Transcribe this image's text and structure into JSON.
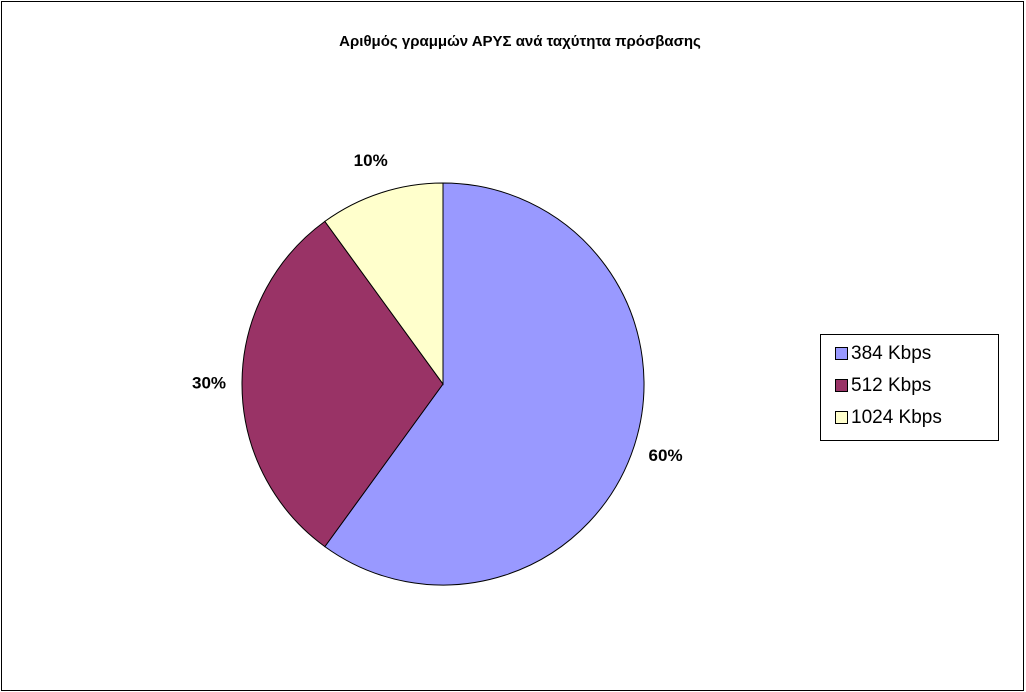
{
  "chart_data": {
    "type": "pie",
    "title": "Αριθμός γραμμών ΑΡΥΣ ανά ταχύτητα πρόσβασης",
    "categories": [
      "384 Kbps",
      "512 Kbps",
      "1024 Kbps"
    ],
    "values": [
      60,
      30,
      10
    ],
    "value_labels": [
      "60%",
      "30%",
      "10%"
    ],
    "colors": [
      "#9999ff",
      "#993366",
      "#ffffcc"
    ],
    "legend": "right"
  }
}
